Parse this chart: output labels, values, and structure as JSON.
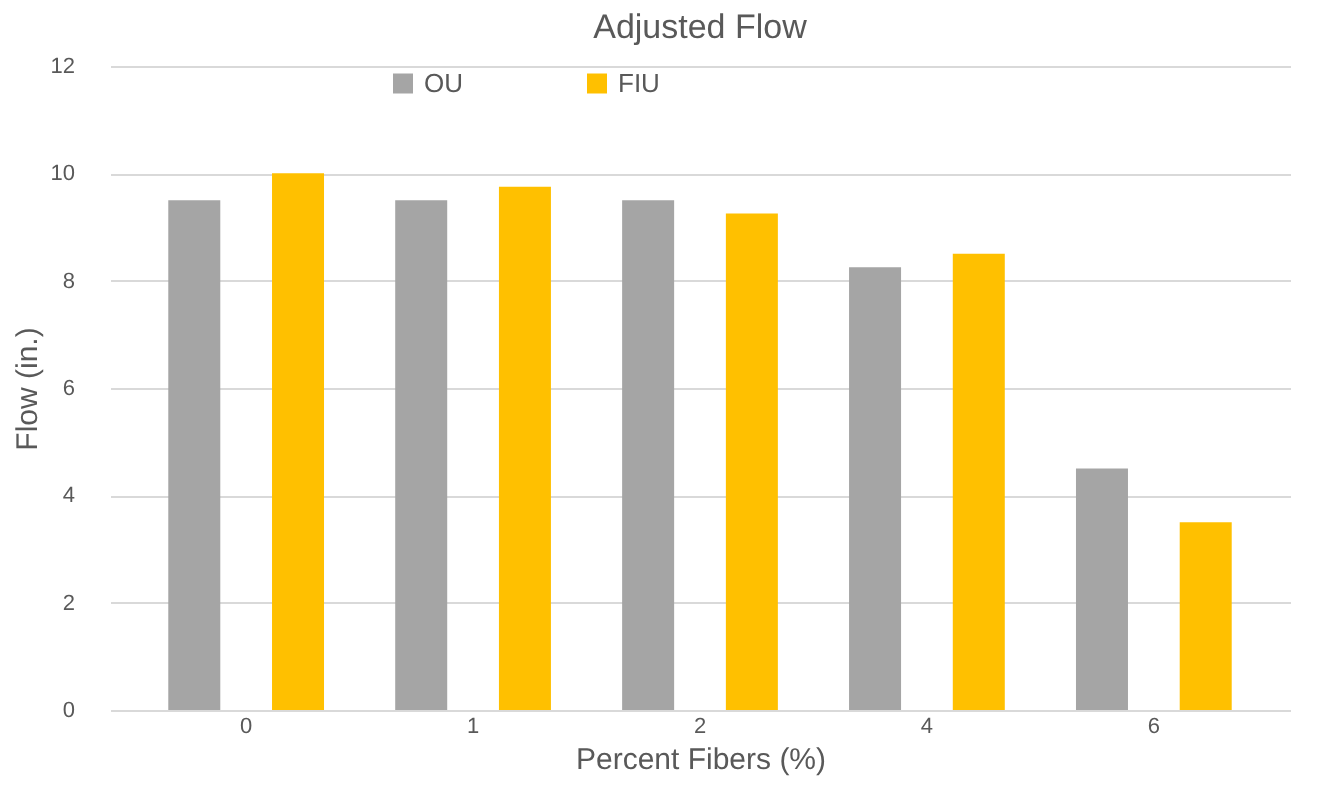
{
  "chart_data": {
    "type": "bar",
    "title": "Adjusted Flow",
    "xlabel": "Percent Fibers (%)",
    "ylabel": "Flow (in.)",
    "categories": [
      "0",
      "1",
      "2",
      "4",
      "6"
    ],
    "series": [
      {
        "name": "OU",
        "color": "#a5a5a5",
        "values": [
          9.5,
          9.5,
          9.5,
          8.25,
          4.5
        ]
      },
      {
        "name": "FIU",
        "color": "#ffc000",
        "values": [
          10,
          9.75,
          9.25,
          8.5,
          3.5
        ]
      }
    ],
    "ylim": [
      0,
      12
    ],
    "yticks": [
      0,
      2,
      4,
      6,
      8,
      10,
      12
    ],
    "grid": "y",
    "legend": "top"
  }
}
